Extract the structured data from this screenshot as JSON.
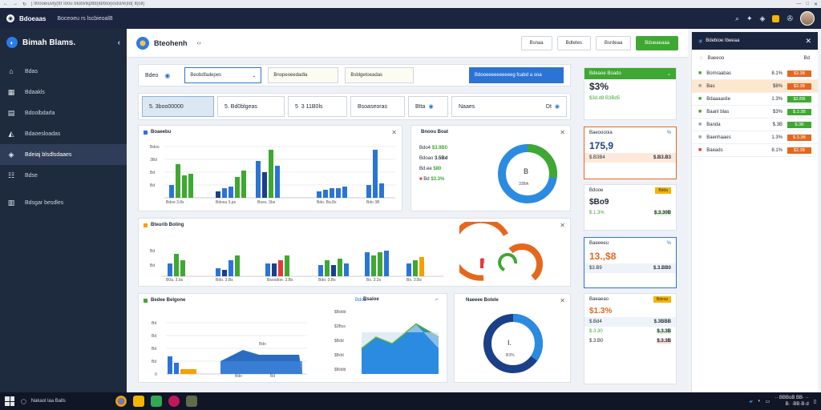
{
  "browser": {
    "url": "| ll0ooeiuvly(ttr lo0u blobl/ikptbl(ld/blo(iodsl/ik)ld( ll(oll)"
  },
  "header": {
    "app_name": "Bdoeaas",
    "tab_title": "Boceoeu rs lscbieoalB"
  },
  "sidebar": {
    "title": "Bimah Blams.",
    "items": [
      {
        "icon": "home-icon",
        "label": "Bdas"
      },
      {
        "icon": "grid-icon",
        "label": "Bdaakls"
      },
      {
        "icon": "doc-icon",
        "label": "Bdoolbdarla"
      },
      {
        "icon": "chart-icon",
        "label": "Bdaoesloadas"
      },
      {
        "icon": "layers-icon",
        "label": "Bdeiaj blsdlsdaaes"
      },
      {
        "icon": "users-icon",
        "label": "Bdse"
      },
      {
        "icon": "settings-icon",
        "label": "Bdsgar besdles"
      }
    ]
  },
  "main": {
    "title": "Bteohenh",
    "subtitle": "‹›",
    "head_buttons": [
      "Bsnaa",
      "Bdtetes",
      "Bsrdeaa",
      "Bdueaeaaa"
    ],
    "filter": {
      "label": "Bdeo",
      "select1": "Beobdfadepes",
      "select2": "Bnopeoeedadla",
      "select3": "Bsblgetoeadas",
      "action": "Bdooeeeeeeeeeeg fcabd a ooa"
    },
    "segments": [
      "5. 3boo00000",
      "5. Bd0blgeas",
      "5  3 11B0ls",
      "Bsoaseoras",
      "Btta",
      "Naaes",
      "Dt"
    ],
    "chart1": {
      "title": "Boaeebu",
      "tick_labels": [
        "Bdoo",
        "3Bd",
        "Bd",
        "Bd",
        "Bd"
      ],
      "xticks": [
        "Bdoo 3.8s",
        "Bdosa 3.ps",
        "Boes. 3bs",
        "Bdo. Ba.8s",
        "Bdo 3B"
      ]
    },
    "stat_card": {
      "title": "Bnoou Boat",
      "rows": [
        {
          "label": "Bdo4",
          "value": "$3.9B0"
        },
        {
          "label": "Bdoao",
          "value": "3.5Bd"
        },
        {
          "label": "Bd.ee",
          "value": "$80"
        },
        {
          "label": "Bd",
          "value": "$3.3%"
        }
      ],
      "donut_label": "B",
      "donut_value": "33BA"
    },
    "chart2": {
      "title": "Bteurib Boling",
      "ticks": [
        "Bd",
        "Bd"
      ],
      "xticks": [
        "B0a. 3.bs",
        "Bdo. 3.Bs",
        "Bsoodoe. 3.Bs",
        "Bdo. 3.Bs",
        "Bs. 3.3s",
        "Bo. 3.Bs"
      ]
    },
    "chart3": {
      "title": "Bedee Belgone",
      "ticks": [
        "Bd",
        "Bd",
        "Bd",
        "Bd",
        "0"
      ],
      "pill": "Bdoa",
      "xticks": [
        "Bdo",
        "Bdo",
        "Bd"
      ]
    },
    "chart4": {
      "title": "Bsaioe",
      "ticks": [
        "$Bddd",
        "$3Bss",
        "$Bdd",
        "$Bdd",
        "$Bddd"
      ]
    },
    "donut2": {
      "title": "Naeeee Bolele",
      "label": "I.",
      "value": "B3%"
    },
    "gauge": {
      "center": "B"
    }
  },
  "kpis": [
    {
      "header": "Bdeaoe Boado",
      "big": "$3%",
      "sub": "$3d.d8 B3Bd5",
      "accent": "#3fa832"
    },
    {
      "header": "Baeooooia",
      "big": "175,9",
      "row_l": "$.B3B4",
      "row_r": "$.B3.B3",
      "accent": "#e5671e"
    },
    {
      "header": "Bdooe",
      "big": "$Bo9",
      "row_l": "$.1.3%",
      "row_r": "$.3.30B",
      "pill": "Bdda",
      "pill_color": "#f4b400"
    },
    {
      "header": "Baeeeeu",
      "big": "13.,$8",
      "row_l": "$3.B9",
      "row_r": "$.3.BB0",
      "accent": "#e5671e"
    },
    {
      "header": "Baeaeao",
      "big": "$1.3%",
      "rows": [
        [
          "$.Bd4",
          "$.3BBB"
        ],
        [
          "$.3.30",
          "$.3.3B"
        ],
        [
          "$.3.B0",
          "$.3.3B"
        ]
      ],
      "pill": "Bdesa",
      "pill_color": "#f4b400"
    }
  ],
  "right_panel": {
    "title": "Bdebioe Ibeeaa",
    "sub_label": "Baeeoo",
    "sub_right": "Bd",
    "rows": [
      {
        "name": "Bomraabas",
        "val": "8.1%",
        "status": "$3.3B",
        "color": "#e5671e",
        "icon": "green"
      },
      {
        "name": "Bas",
        "val": "$8%",
        "status": "$3.3B",
        "color": "#e5671e",
        "icon": "gray",
        "highlight": true
      },
      {
        "name": "Bdaaaaslie",
        "val": "1.3%",
        "status": "$3.BB",
        "color": "#3fa832",
        "icon": "green"
      },
      {
        "name": "Baanl blas",
        "val": "$3%",
        "status": "$.3.3B",
        "color": "#3fa832",
        "icon": "green"
      },
      {
        "name": "Banda",
        "val": "$.3B",
        "status": "$.3B",
        "color": "#3fa832",
        "icon": "gray"
      },
      {
        "name": "Baenhaaes",
        "val": "1.3%",
        "status": "$.3.3B",
        "color": "#e5671e",
        "icon": "gray"
      },
      {
        "name": "Baeads",
        "val": "8.1%",
        "status": "$3.3B",
        "color": "#e5671e",
        "icon": "red"
      }
    ]
  },
  "taskbar": {
    "search": "Nakaol laa Balls",
    "time": "·· BBBoB BB· ··",
    "date": "B· ·BB·B·d"
  }
}
